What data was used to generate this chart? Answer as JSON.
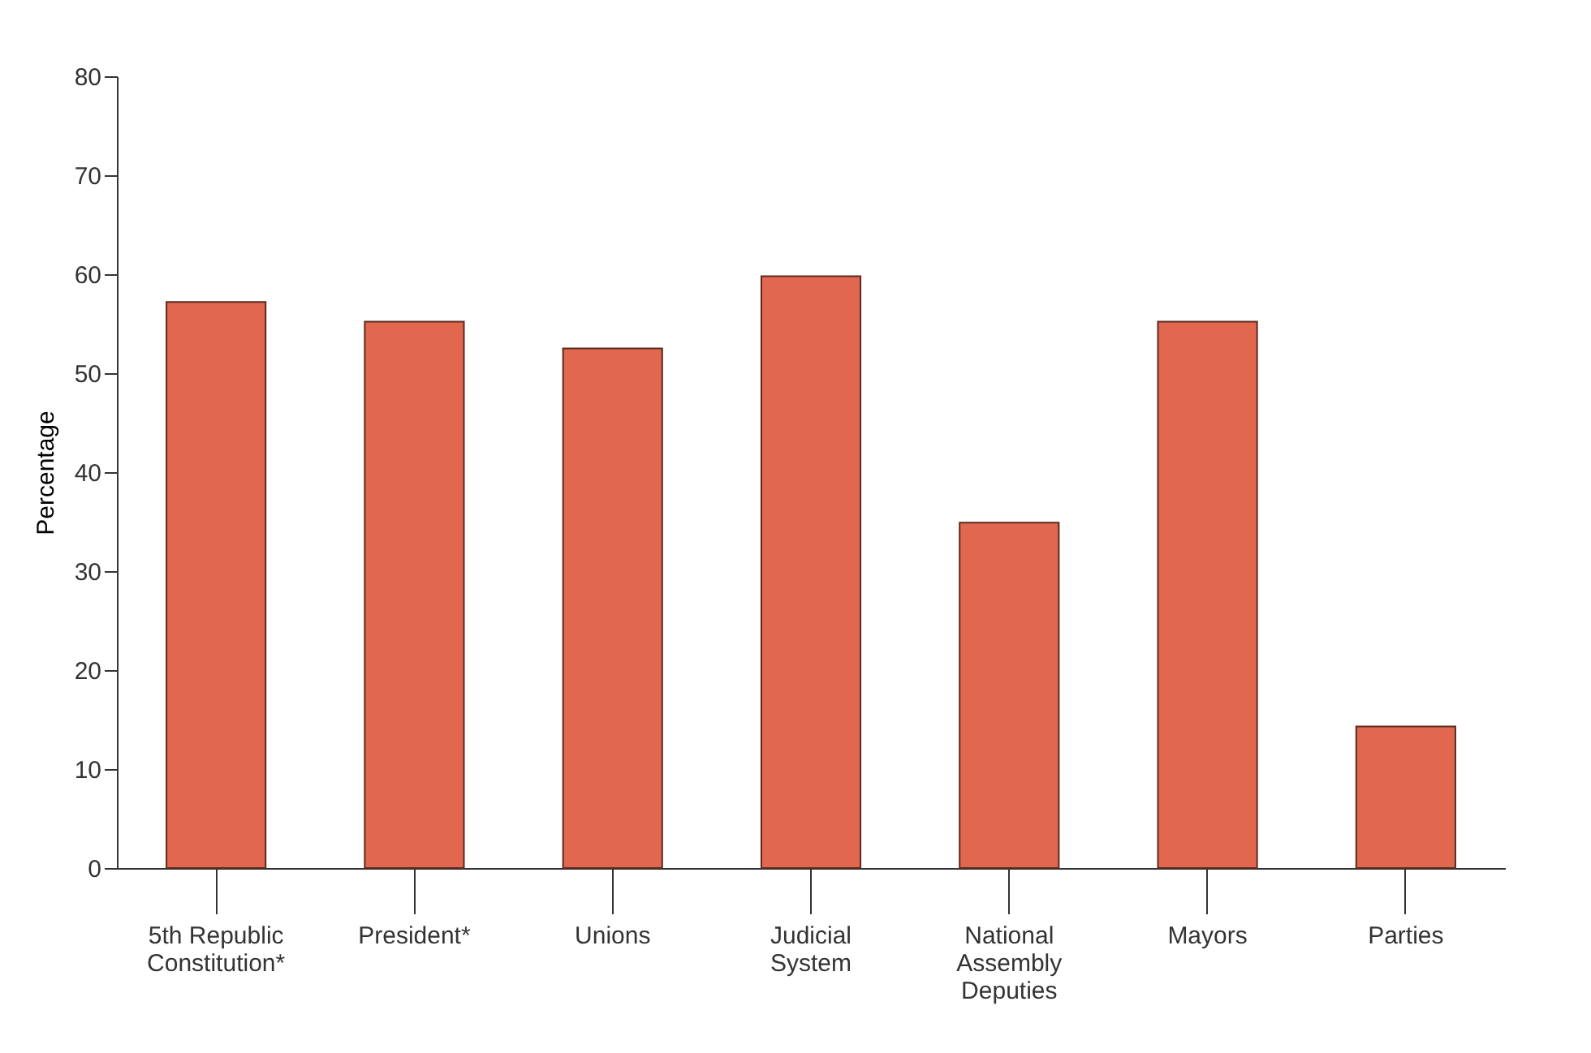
{
  "chart_data": {
    "type": "bar",
    "ylabel": "Percentage",
    "categories": [
      "5th Republic\nConstitution*",
      "President*",
      "Unions",
      "Judicial\nSystem",
      "National\nAssembly\nDeputies",
      "Mayors",
      "Parties"
    ],
    "values": [
      57.2,
      55.2,
      52.5,
      59.8,
      34.9,
      55.2,
      14.3
    ],
    "color": "#e2674f",
    "ylim": [
      0,
      80
    ],
    "yticks": [
      0,
      10,
      20,
      30,
      40,
      50,
      60,
      70,
      80
    ],
    "grid": false
  }
}
